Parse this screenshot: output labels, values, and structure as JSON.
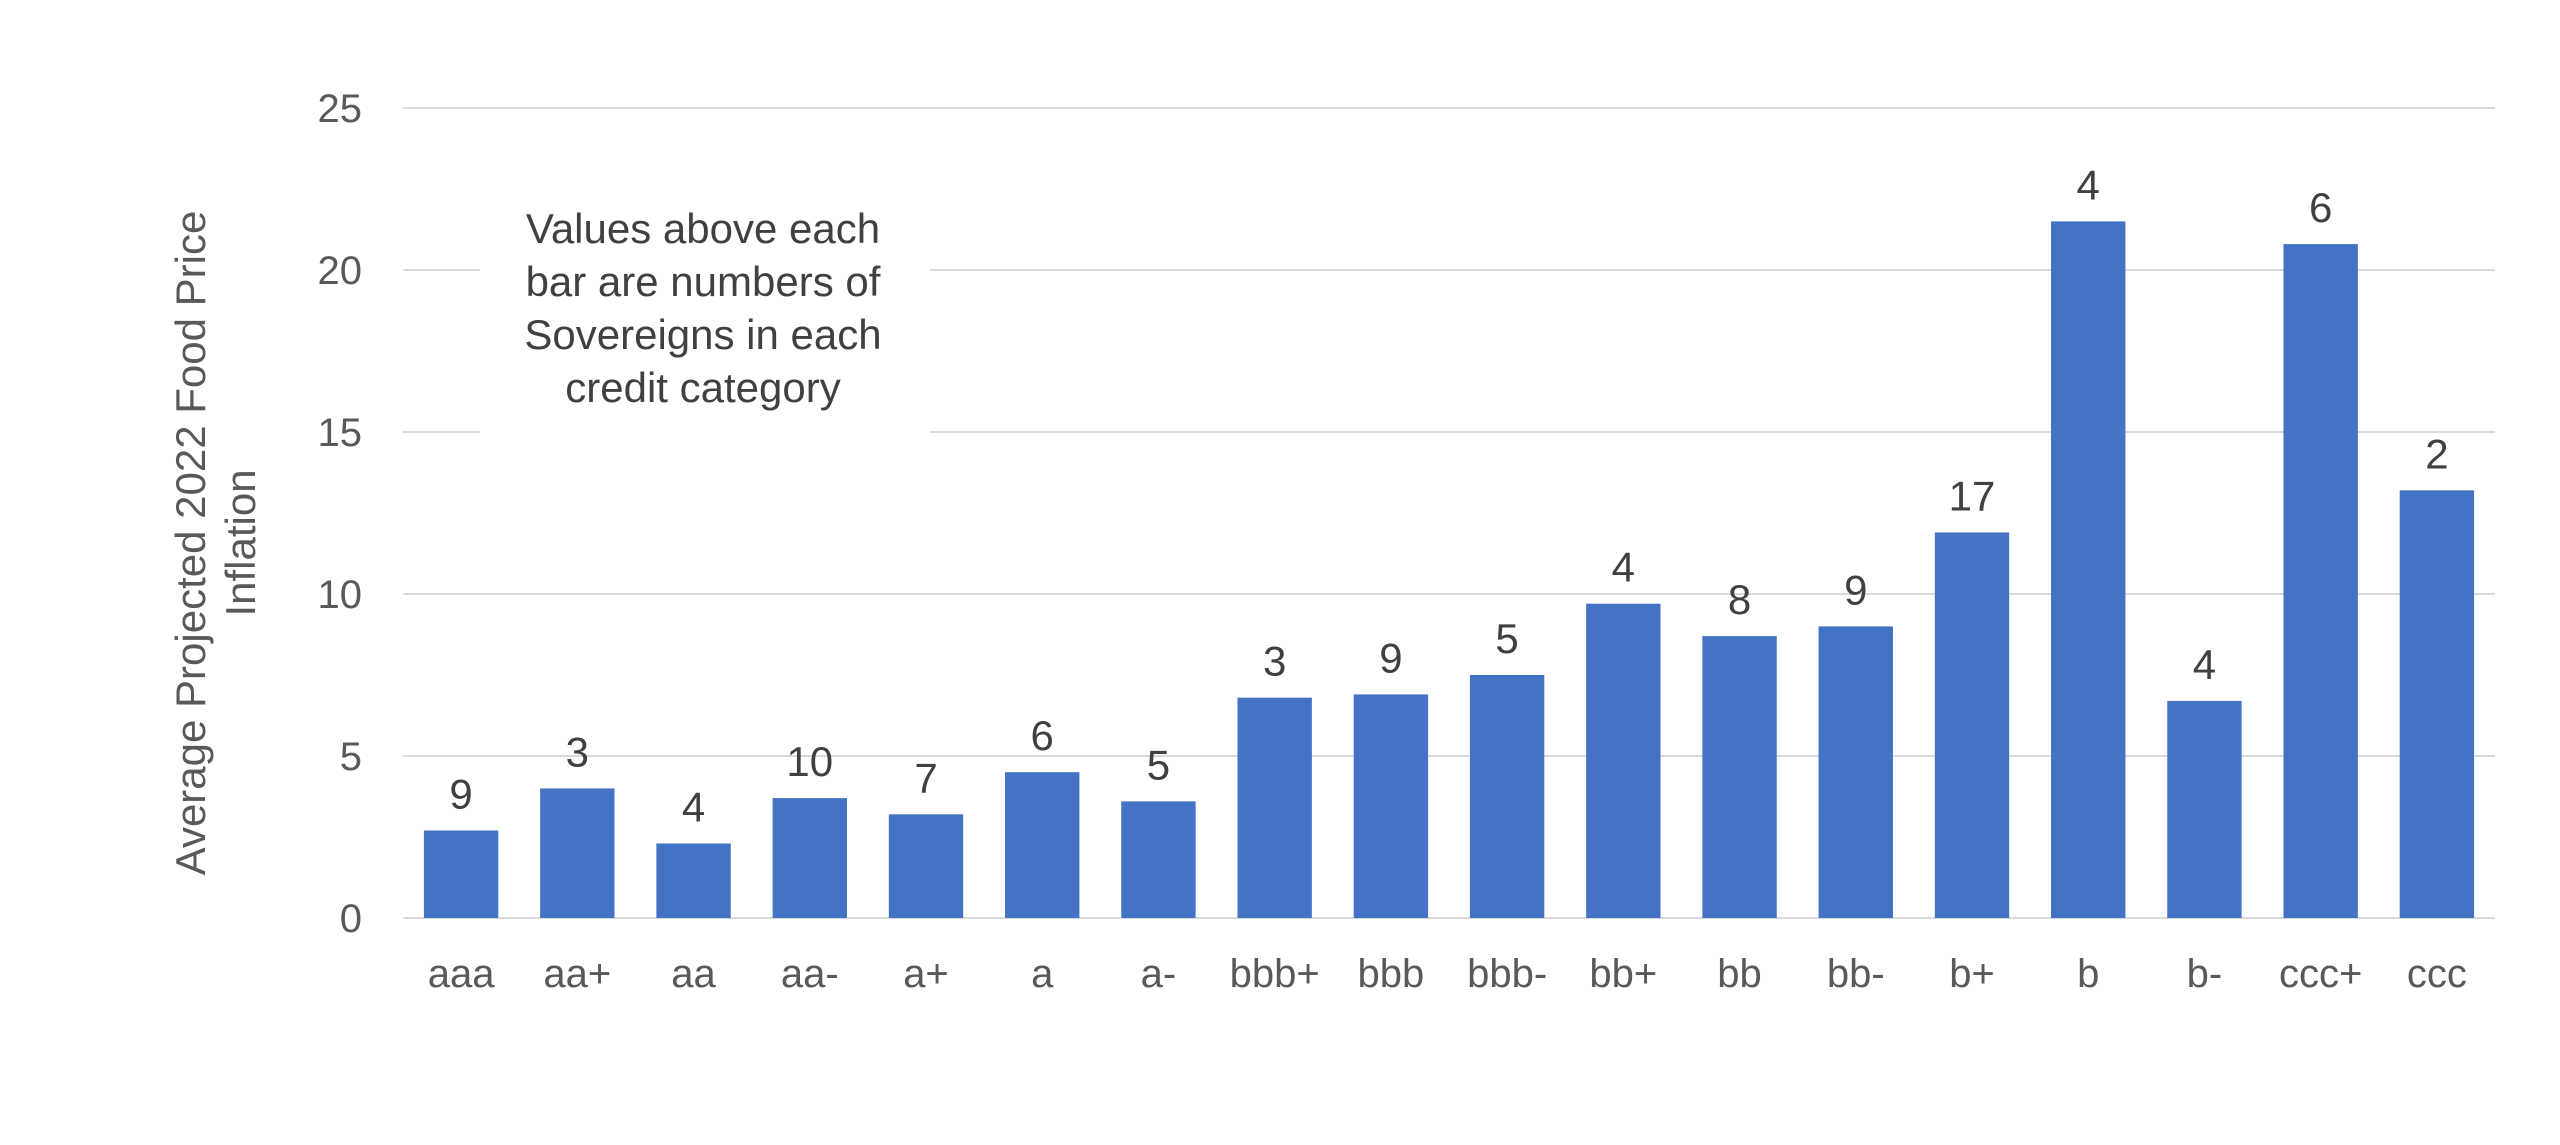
{
  "chart_data": {
    "type": "bar",
    "categories": [
      "aaa",
      "aa+",
      "aa",
      "aa-",
      "a+",
      "a",
      "a-",
      "bbb+",
      "bbb",
      "bbb-",
      "bb+",
      "bb",
      "bb-",
      "b+",
      "b",
      "b-",
      "ccc+",
      "ccc"
    ],
    "series": [
      {
        "values": [
          2.7,
          4.0,
          2.3,
          3.7,
          3.2,
          4.5,
          3.6,
          6.8,
          6.9,
          7.5,
          9.7,
          8.7,
          9.0,
          11.9,
          21.5,
          6.7,
          20.8,
          13.2
        ],
        "data_labels": [
          "9",
          "3",
          "4",
          "10",
          "7",
          "6",
          "5",
          "3",
          "9",
          "5",
          "4",
          "8",
          "9",
          "17",
          "4",
          "4",
          "6",
          "2"
        ],
        "color": "#4472C4"
      }
    ],
    "title": "",
    "xlabel": "",
    "ylabel": "Average Projected 2022 Food Price Inflation",
    "ylabel_lines": [
      "Average Projected 2022 Food Price",
      "Inflation"
    ],
    "ylim": [
      0,
      25
    ],
    "yticks": [
      "0",
      "5",
      "10",
      "15",
      "20",
      "25"
    ],
    "grid": true,
    "legend": "none",
    "annotation_lines": [
      "Values above each",
      "bar are numbers of",
      "Sovereigns in each",
      "credit category"
    ],
    "colors": {
      "bar": "#4472C4",
      "grid": "#D9D9D9",
      "axis": "#D9D9D9",
      "tick_text": "#595959",
      "label_text": "#404040"
    }
  }
}
